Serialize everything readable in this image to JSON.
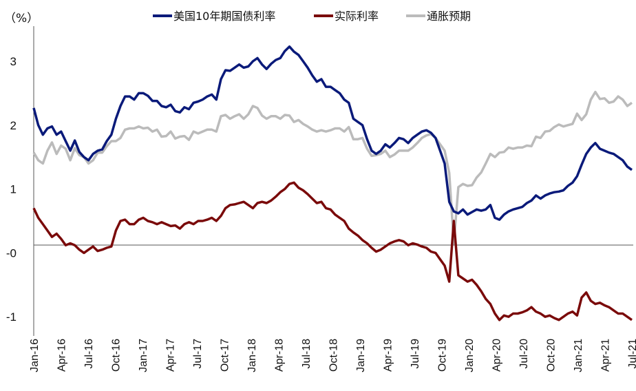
{
  "chart_data": {
    "type": "line",
    "unit_label": "（%）",
    "y_ticks": [
      {
        "value": 3,
        "label": "3",
        "color": "#111111"
      },
      {
        "value": 2,
        "label": "2",
        "color": "#111111"
      },
      {
        "value": 1,
        "label": "1",
        "color": "#111111"
      },
      {
        "value": 0,
        "label": "-0",
        "color": "#e00000"
      },
      {
        "value": -1,
        "label": "-1",
        "color": "#111111"
      }
    ],
    "ylim": [
      -1.3,
      3.55
    ],
    "x_ticks": [
      "Jan-16",
      "Apr-16",
      "Jul-16",
      "Oct-16",
      "Jan-17",
      "Apr-17",
      "Jul-17",
      "Oct-17",
      "Jan-18",
      "Apr-18",
      "Jul-18",
      "Oct-18",
      "Jan-19",
      "Apr-19",
      "Jul-19",
      "Oct-19",
      "Jan-20",
      "Apr-20",
      "Jul-20",
      "Oct-20",
      "Jan-21",
      "Apr-21",
      "Jul-21"
    ],
    "legend_position": "top",
    "grid": false,
    "series": [
      {
        "name": "美国10年期国债利率",
        "color": "#0a1a7a",
        "values": [
          2.27,
          2.0,
          1.85,
          1.95,
          1.98,
          1.85,
          1.9,
          1.75,
          1.6,
          1.76,
          1.58,
          1.5,
          1.45,
          1.55,
          1.6,
          1.62,
          1.75,
          1.85,
          2.1,
          2.3,
          2.45,
          2.45,
          2.4,
          2.5,
          2.5,
          2.46,
          2.38,
          2.38,
          2.3,
          2.28,
          2.32,
          2.22,
          2.2,
          2.28,
          2.25,
          2.35,
          2.37,
          2.4,
          2.45,
          2.48,
          2.4,
          2.72,
          2.86,
          2.85,
          2.9,
          2.95,
          2.9,
          2.92,
          3.0,
          3.05,
          2.95,
          2.88,
          2.96,
          3.02,
          3.05,
          3.16,
          3.23,
          3.15,
          3.1,
          3.0,
          2.9,
          2.78,
          2.68,
          2.72,
          2.6,
          2.6,
          2.55,
          2.5,
          2.4,
          2.35,
          2.1,
          2.05,
          2.0,
          1.78,
          1.6,
          1.55,
          1.6,
          1.7,
          1.65,
          1.72,
          1.8,
          1.78,
          1.72,
          1.8,
          1.85,
          1.9,
          1.92,
          1.88,
          1.8,
          1.6,
          1.4,
          0.8,
          0.65,
          0.62,
          0.68,
          0.6,
          0.64,
          0.68,
          0.66,
          0.68,
          0.75,
          0.55,
          0.52,
          0.6,
          0.65,
          0.68,
          0.7,
          0.72,
          0.78,
          0.82,
          0.9,
          0.85,
          0.9,
          0.93,
          0.95,
          0.96,
          0.98,
          1.05,
          1.1,
          1.2,
          1.38,
          1.55,
          1.65,
          1.72,
          1.63,
          1.6,
          1.57,
          1.55,
          1.5,
          1.45,
          1.35,
          1.3
        ]
      },
      {
        "name": "实际利率",
        "color": "#7a0a0a",
        "values": [
          0.7,
          0.55,
          0.45,
          0.35,
          0.25,
          0.3,
          0.22,
          0.12,
          0.15,
          0.12,
          0.05,
          0.0,
          0.05,
          0.1,
          0.03,
          0.05,
          0.08,
          0.1,
          0.35,
          0.5,
          0.52,
          0.45,
          0.45,
          0.52,
          0.55,
          0.5,
          0.48,
          0.45,
          0.48,
          0.45,
          0.42,
          0.43,
          0.38,
          0.45,
          0.48,
          0.45,
          0.5,
          0.5,
          0.52,
          0.55,
          0.5,
          0.58,
          0.7,
          0.75,
          0.76,
          0.78,
          0.8,
          0.75,
          0.7,
          0.78,
          0.8,
          0.78,
          0.82,
          0.88,
          0.95,
          1.0,
          1.08,
          1.1,
          1.02,
          0.98,
          0.92,
          0.85,
          0.78,
          0.8,
          0.7,
          0.68,
          0.6,
          0.55,
          0.5,
          0.38,
          0.32,
          0.27,
          0.2,
          0.15,
          0.08,
          0.02,
          0.05,
          0.1,
          0.15,
          0.18,
          0.2,
          0.18,
          0.12,
          0.15,
          0.13,
          0.1,
          0.08,
          0.02,
          0.0,
          -0.1,
          -0.2,
          -0.45,
          0.5,
          -0.35,
          -0.4,
          -0.45,
          -0.42,
          -0.5,
          -0.6,
          -0.72,
          -0.8,
          -0.95,
          -1.05,
          -0.98,
          -1.0,
          -0.95,
          -0.95,
          -0.93,
          -0.9,
          -0.85,
          -0.92,
          -0.95,
          -1.0,
          -0.98,
          -1.02,
          -1.05,
          -1.0,
          -0.95,
          -0.92,
          -0.98,
          -0.7,
          -0.62,
          -0.75,
          -0.8,
          -0.78,
          -0.82,
          -0.85,
          -0.9,
          -0.95,
          -0.95,
          -1.0,
          -1.05
        ]
      },
      {
        "name": "通胀预期",
        "color": "#bbbbbb",
        "values": [
          1.57,
          1.45,
          1.4,
          1.6,
          1.73,
          1.55,
          1.68,
          1.63,
          1.45,
          1.64,
          1.53,
          1.5,
          1.4,
          1.45,
          1.57,
          1.57,
          1.67,
          1.75,
          1.75,
          1.8,
          1.93,
          1.95,
          1.95,
          1.98,
          1.95,
          1.96,
          1.9,
          1.93,
          1.82,
          1.83,
          1.9,
          1.79,
          1.82,
          1.83,
          1.77,
          1.9,
          1.87,
          1.9,
          1.93,
          1.93,
          1.9,
          2.14,
          2.16,
          2.1,
          2.14,
          2.17,
          2.1,
          2.17,
          2.3,
          2.27,
          2.15,
          2.1,
          2.14,
          2.14,
          2.1,
          2.16,
          2.15,
          2.05,
          2.08,
          2.02,
          1.98,
          1.93,
          1.9,
          1.92,
          1.9,
          1.92,
          1.95,
          1.95,
          1.9,
          1.97,
          1.78,
          1.78,
          1.8,
          1.63,
          1.52,
          1.53,
          1.55,
          1.6,
          1.5,
          1.54,
          1.6,
          1.6,
          1.6,
          1.65,
          1.72,
          1.8,
          1.84,
          1.86,
          1.8,
          1.7,
          1.6,
          1.25,
          0.15,
          1.03,
          1.08,
          1.05,
          1.06,
          1.18,
          1.26,
          1.4,
          1.55,
          1.5,
          1.57,
          1.58,
          1.65,
          1.63,
          1.65,
          1.65,
          1.68,
          1.67,
          1.82,
          1.8,
          1.9,
          1.91,
          1.97,
          2.01,
          1.98,
          2.0,
          2.02,
          2.18,
          2.08,
          2.17,
          2.4,
          2.52,
          2.41,
          2.42,
          2.35,
          2.37,
          2.45,
          2.4,
          2.3,
          2.35
        ]
      }
    ]
  }
}
